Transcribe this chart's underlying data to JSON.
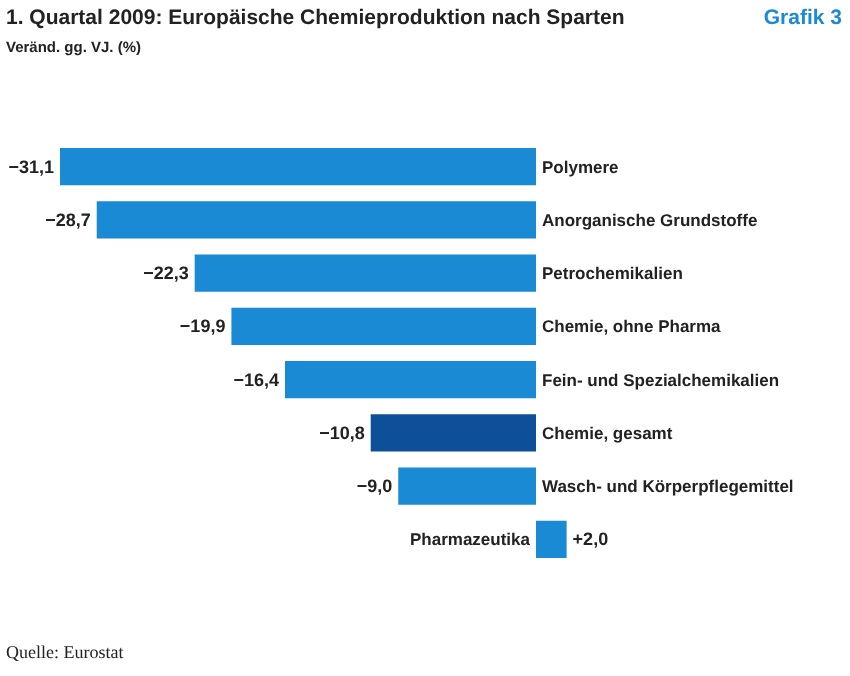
{
  "chart_data": {
    "type": "bar",
    "orientation": "horizontal",
    "title": "1. Quartal 2009: Europäische Chemieproduktion nach Sparten",
    "subtitle": "Veränd. gg. VJ. (%)",
    "categories": [
      "Polymere",
      "Anorganische Grundstoffe",
      "Petrochemikalien",
      "Chemie, ohne Pharma",
      "Fein- und Spezialchemikalien",
      "Chemie, gesamt",
      "Wasch- und Körperpflegemittel",
      "Pharmazeutika"
    ],
    "values": [
      -31.1,
      -28.7,
      -22.3,
      -19.9,
      -16.4,
      -10.8,
      -9.0,
      2.0
    ],
    "value_labels": [
      "−31,1",
      "−28,7",
      "−22,3",
      "−19,9",
      "−16,4",
      "−10,8",
      "−9,0",
      "+2,0"
    ],
    "colors": [
      "#1a8ad4",
      "#1a8ad4",
      "#1a8ad4",
      "#1a8ad4",
      "#1a8ad4",
      "#0d4f98",
      "#1a8ad4",
      "#1a8ad4"
    ],
    "annotations": [
      "Grafik 3",
      "Quelle: Eurostat"
    ]
  }
}
